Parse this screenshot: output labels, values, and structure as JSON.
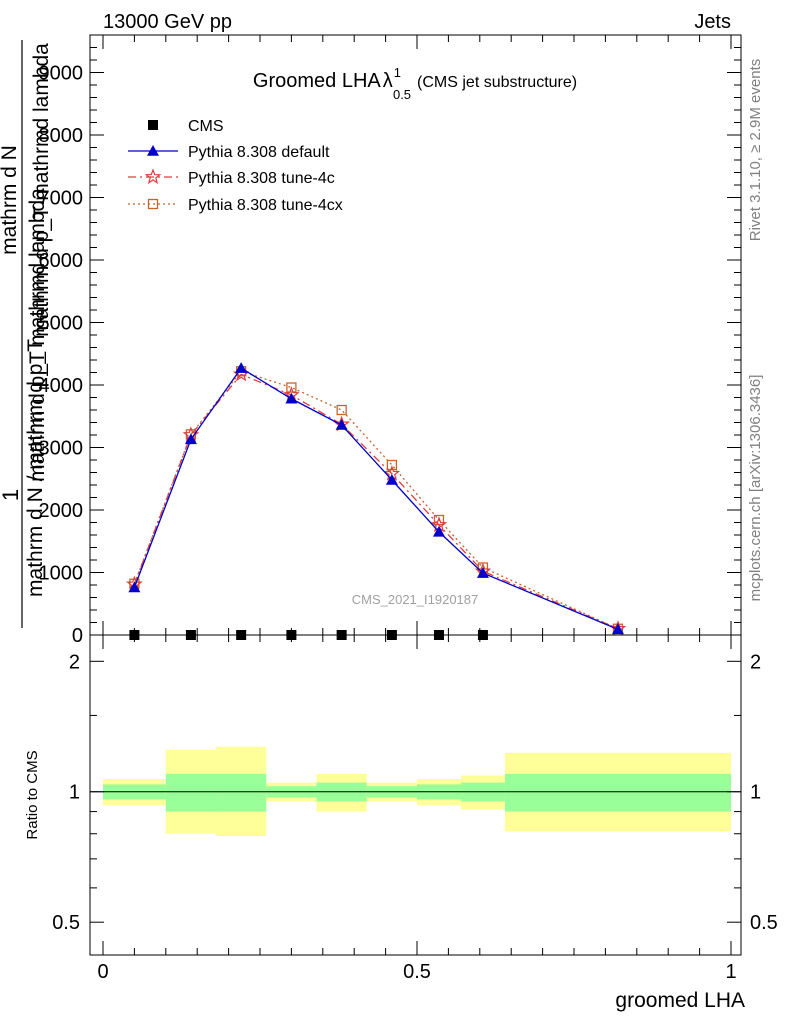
{
  "header": {
    "left": "13000 GeV pp",
    "right": "Jets"
  },
  "title": {
    "main": "Groomed LHA",
    "lambda": "λ",
    "sup": "1",
    "sub": "0.5",
    "note": "(CMS jet substructure)"
  },
  "side_labels": {
    "rivet": "Rivet 3.1.10, ≥ 2.9M events",
    "mcplots": "mcplots.cern.ch [arXiv:1306.3436]"
  },
  "watermark": "CMS_2021_I1920187",
  "chart_data": [
    {
      "type": "line",
      "panel": "main",
      "ylabel_top": "1",
      "ylabel_numerator_left": "mathrm d N",
      "ylabel_numerator_right": "mathrm d p_T mathrmd lambda",
      "ylabel_denominator": "mathrm d N / mathrm d p_T",
      "ylabel_denominator_right": "mathrm d p_T mathrmd lambda",
      "xlim": [
        0,
        1
      ],
      "ylim": [
        0,
        9600
      ],
      "yticks": [
        0,
        1000,
        2000,
        3000,
        4000,
        5000,
        6000,
        7000,
        8000,
        9000
      ],
      "ytick_labels": [
        "0",
        "1000",
        "2000",
        "3000",
        "4000",
        "5000",
        "6000",
        "7000",
        "8000",
        "9000"
      ],
      "legend_position": "top-left",
      "series": [
        {
          "name": "CMS",
          "style": "data",
          "color": "#000000",
          "x": [
            0.05,
            0.14,
            0.22,
            0.3,
            0.38,
            0.46,
            0.535,
            0.605
          ],
          "values": [
            0,
            0,
            0,
            0,
            0,
            0,
            0,
            0
          ]
        },
        {
          "name": "Pythia 8.308 default",
          "style": "solid-triangle",
          "color": "#0000cc",
          "x": [
            0.05,
            0.14,
            0.22,
            0.3,
            0.38,
            0.46,
            0.535,
            0.605,
            0.82
          ],
          "values": [
            760,
            3130,
            4270,
            3780,
            3360,
            2480,
            1650,
            990,
            90
          ]
        },
        {
          "name": "Pythia 8.308 tune-4c",
          "style": "dashdot-star",
          "color": "#e03c3c",
          "x": [
            0.05,
            0.14,
            0.22,
            0.3,
            0.38,
            0.46,
            0.535,
            0.605,
            0.82
          ],
          "values": [
            810,
            3200,
            4170,
            3840,
            3370,
            2580,
            1760,
            1020,
            100
          ]
        },
        {
          "name": "Pythia 8.308 tune-4cx",
          "style": "dotted-square",
          "color": "#c8642a",
          "x": [
            0.05,
            0.14,
            0.22,
            0.3,
            0.38,
            0.46,
            0.535,
            0.605,
            0.82
          ],
          "values": [
            820,
            3210,
            4220,
            3960,
            3600,
            2720,
            1840,
            1080,
            100
          ]
        }
      ]
    },
    {
      "type": "area",
      "panel": "ratio",
      "ylabel": "Ratio to CMS",
      "xlabel": "groomed LHA",
      "xlim": [
        0,
        1
      ],
      "ylim": [
        0.42,
        2.3
      ],
      "log_y": true,
      "yticks": [
        0.5,
        1,
        2
      ],
      "ytick_labels": [
        "0.5",
        "1",
        "2"
      ],
      "xticks": [
        0,
        0.5,
        1
      ],
      "xtick_labels": [
        "0",
        "0.5",
        "1"
      ],
      "bands": {
        "x_edges": [
          0,
          0.1,
          0.18,
          0.26,
          0.34,
          0.42,
          0.5,
          0.57,
          0.64,
          1.0
        ],
        "inner_color": "#99ff99",
        "outer_color": "#ffff99",
        "inner_low": [
          0.96,
          0.9,
          0.9,
          0.97,
          0.95,
          0.97,
          0.96,
          0.95,
          0.9
        ],
        "inner_high": [
          1.04,
          1.1,
          1.1,
          1.03,
          1.05,
          1.03,
          1.04,
          1.05,
          1.1
        ],
        "outer_low": [
          0.93,
          0.8,
          0.79,
          0.95,
          0.9,
          0.95,
          0.93,
          0.91,
          0.81
        ],
        "outer_high": [
          1.07,
          1.25,
          1.27,
          1.05,
          1.1,
          1.05,
          1.07,
          1.09,
          1.23
        ]
      }
    }
  ]
}
